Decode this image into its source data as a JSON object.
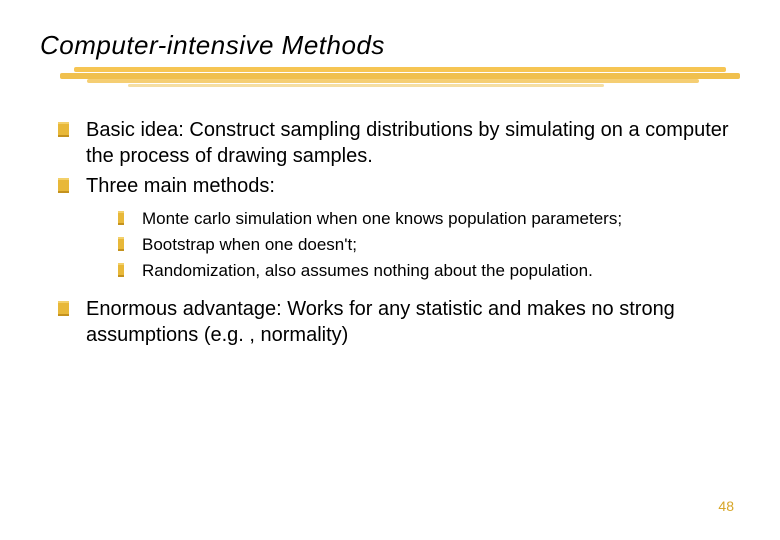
{
  "title": "Computer-intensive Methods",
  "palette": {
    "accent": "#e8b839",
    "accent_light": "#f3d06a",
    "accent_dark": "#c4921e",
    "text": "#000000",
    "background": "#ffffff",
    "page_number_color": "#d7a628"
  },
  "typography": {
    "title_font": "Comic Sans MS",
    "title_fontsize_pt": 26,
    "body_font": "Arial",
    "body_fontsize_pt": 20,
    "sub_fontsize_pt": 17,
    "pagenum_fontsize_pt": 14
  },
  "bullets": {
    "items": [
      {
        "text": "Basic idea:  Construct sampling distributions by simulating on a computer the process of drawing samples."
      },
      {
        "text": "Three main methods:",
        "sub": [
          "Monte carlo simulation when one knows population parameters;",
          "Bootstrap when one doesn't;",
          "Randomization, also assumes nothing about the population."
        ]
      },
      {
        "text": "Enormous advantage: Works for any statistic and makes no strong assumptions (e.g. , normality)"
      }
    ]
  },
  "page_number": "48"
}
